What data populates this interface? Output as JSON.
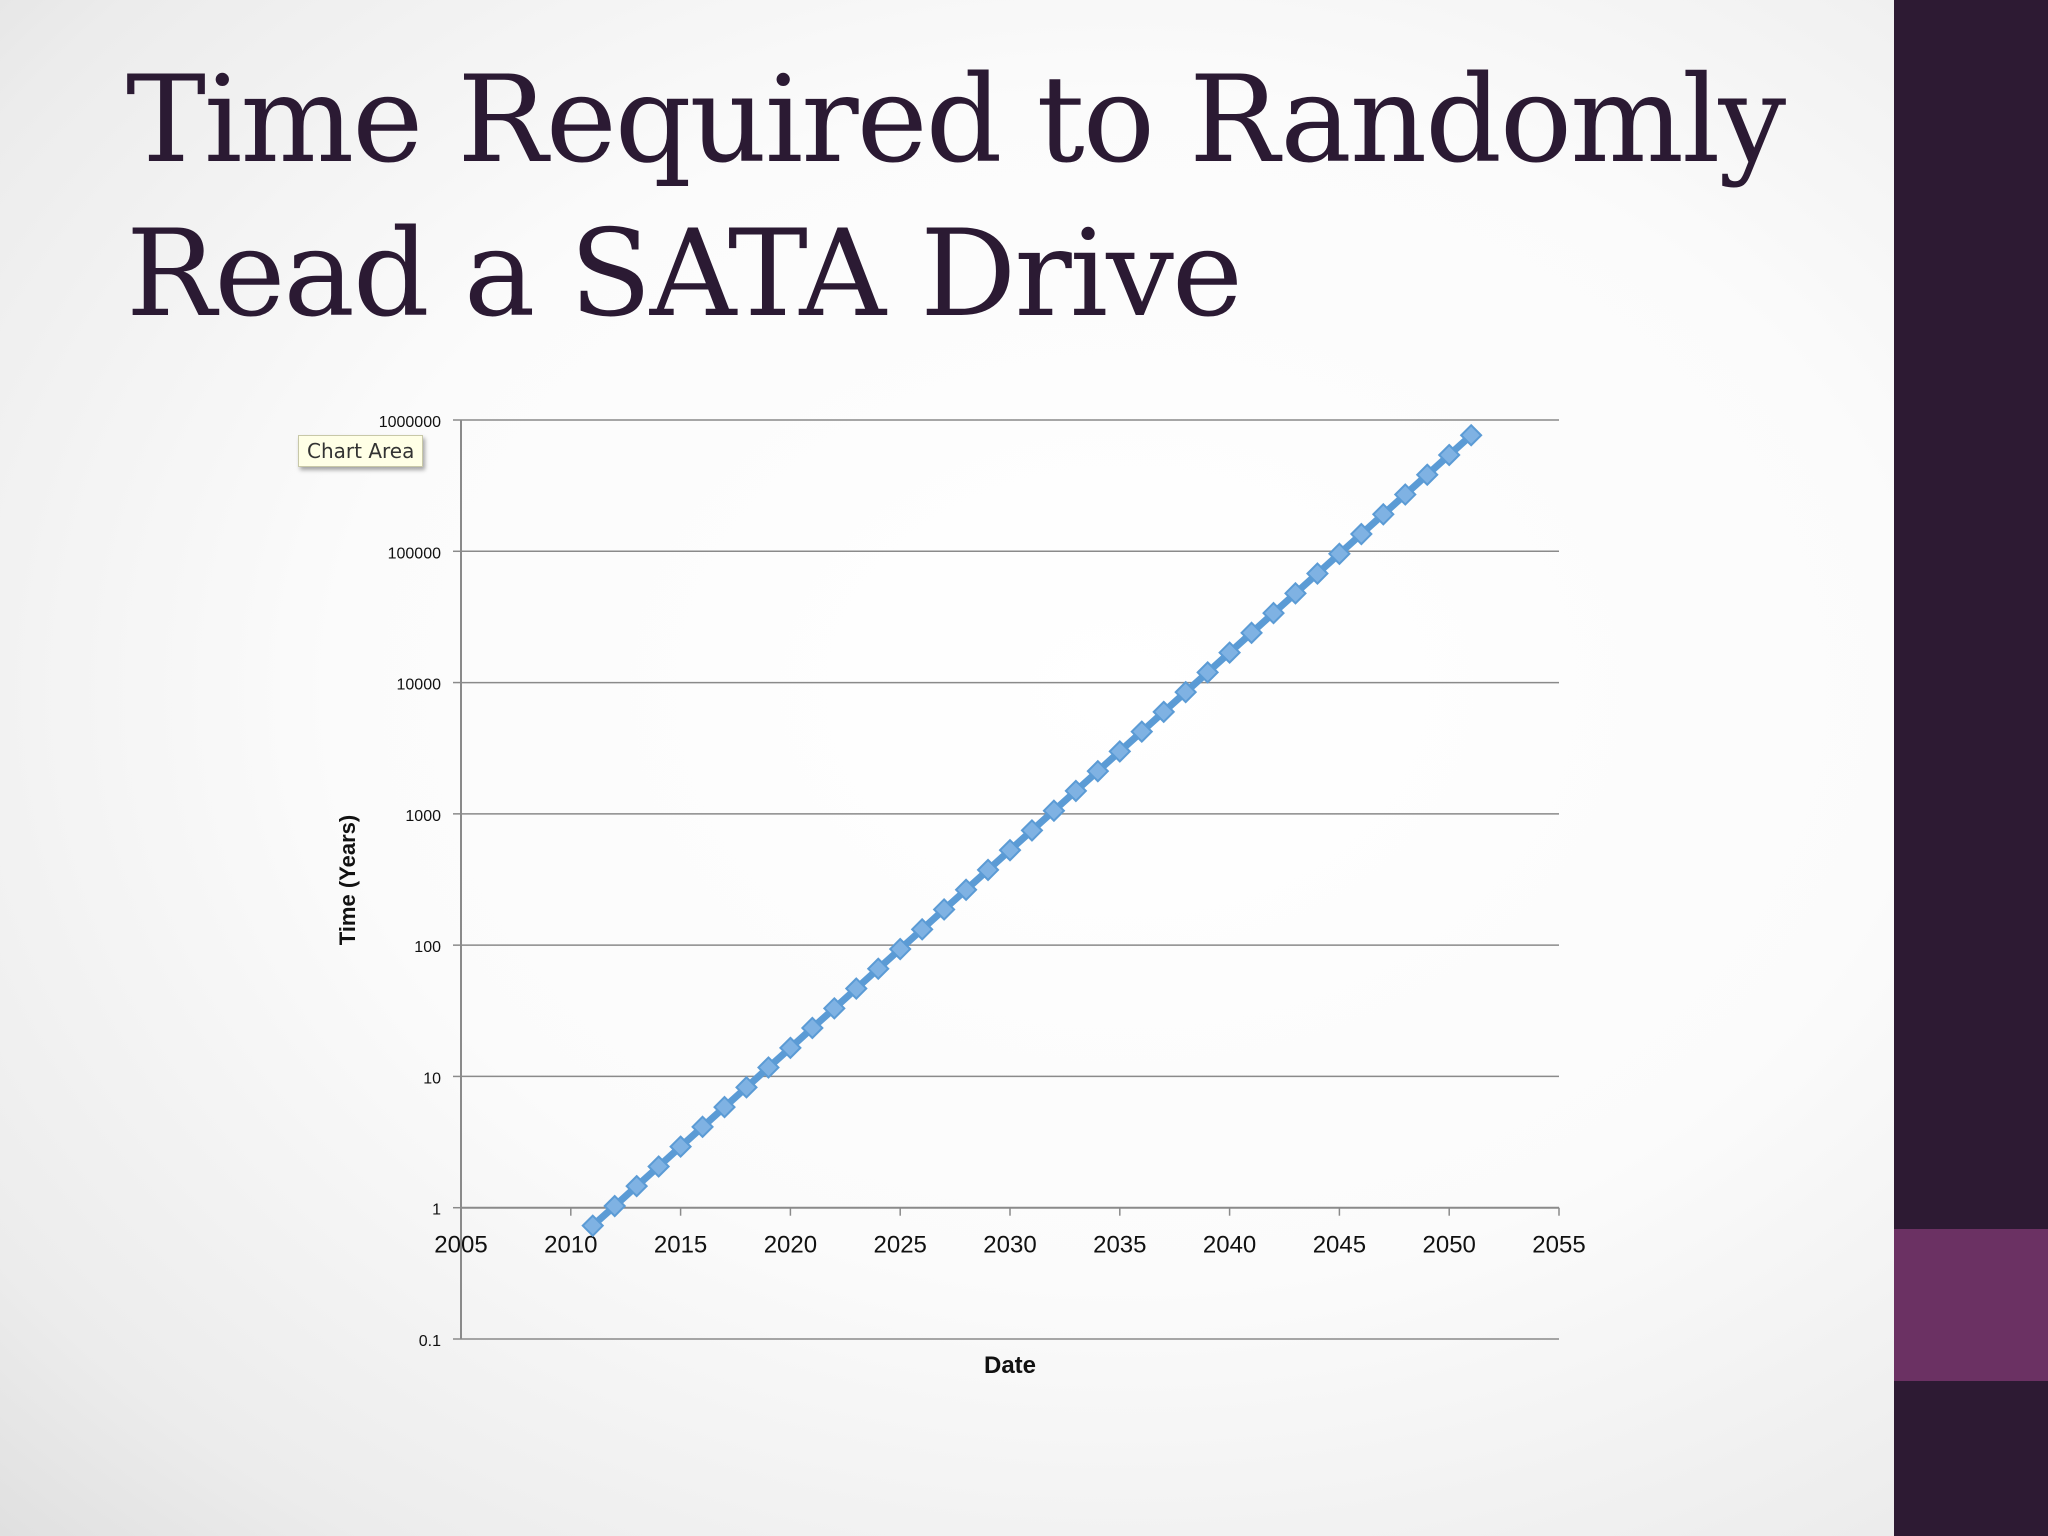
{
  "slide": {
    "title_lines": [
      "Time Required to Randomly",
      "Read a SATA Drive"
    ]
  },
  "tooltip": {
    "label": "Chart Area"
  },
  "colors": {
    "sidebar": "#2d1a33",
    "sidebar_accent": "#6b3163",
    "title": "#2b1a33",
    "series": "#5b9bd5"
  },
  "chart_data": {
    "type": "line",
    "title": "",
    "xlabel": "Date",
    "ylabel": "Time (Years)",
    "x_scale": "linear",
    "y_scale": "log",
    "xlim": [
      2005,
      2055
    ],
    "ylim": [
      0.1,
      1000000
    ],
    "x_ticks": [
      2005,
      2010,
      2015,
      2020,
      2025,
      2030,
      2035,
      2040,
      2045,
      2050,
      2055
    ],
    "y_ticks": [
      0.1,
      1,
      10,
      100,
      1000,
      10000,
      100000,
      1000000
    ],
    "y_tick_labels": [
      "0.1",
      "1",
      "10",
      "100",
      "1000",
      "10000",
      "100000",
      "1000000"
    ],
    "grid": "horizontal",
    "legend": "none",
    "series": [
      {
        "marker": "diamond",
        "x": [
          2011,
          2012,
          2013,
          2014,
          2015,
          2016,
          2017,
          2018,
          2019,
          2020,
          2021,
          2022,
          2023,
          2024,
          2025,
          2026,
          2027,
          2028,
          2029,
          2030,
          2031,
          2032,
          2033,
          2034,
          2035,
          2036,
          2037,
          2038,
          2039,
          2040,
          2041,
          2042,
          2043,
          2044,
          2045,
          2046,
          2047,
          2048,
          2049,
          2050,
          2051
        ],
        "y": [
          0.73,
          1.03,
          1.46,
          2.06,
          2.92,
          4.13,
          5.84,
          8.26,
          11.7,
          16.5,
          23.4,
          33.0,
          46.7,
          66.1,
          93.4,
          132,
          187,
          264,
          374,
          529,
          748,
          1057,
          1495,
          2114,
          2990,
          4229,
          5981,
          8457,
          11961,
          16915,
          23921,
          33830,
          47842,
          67659,
          95684,
          135317,
          191367,
          270633,
          382732,
          541264,
          765467
        ]
      }
    ]
  }
}
